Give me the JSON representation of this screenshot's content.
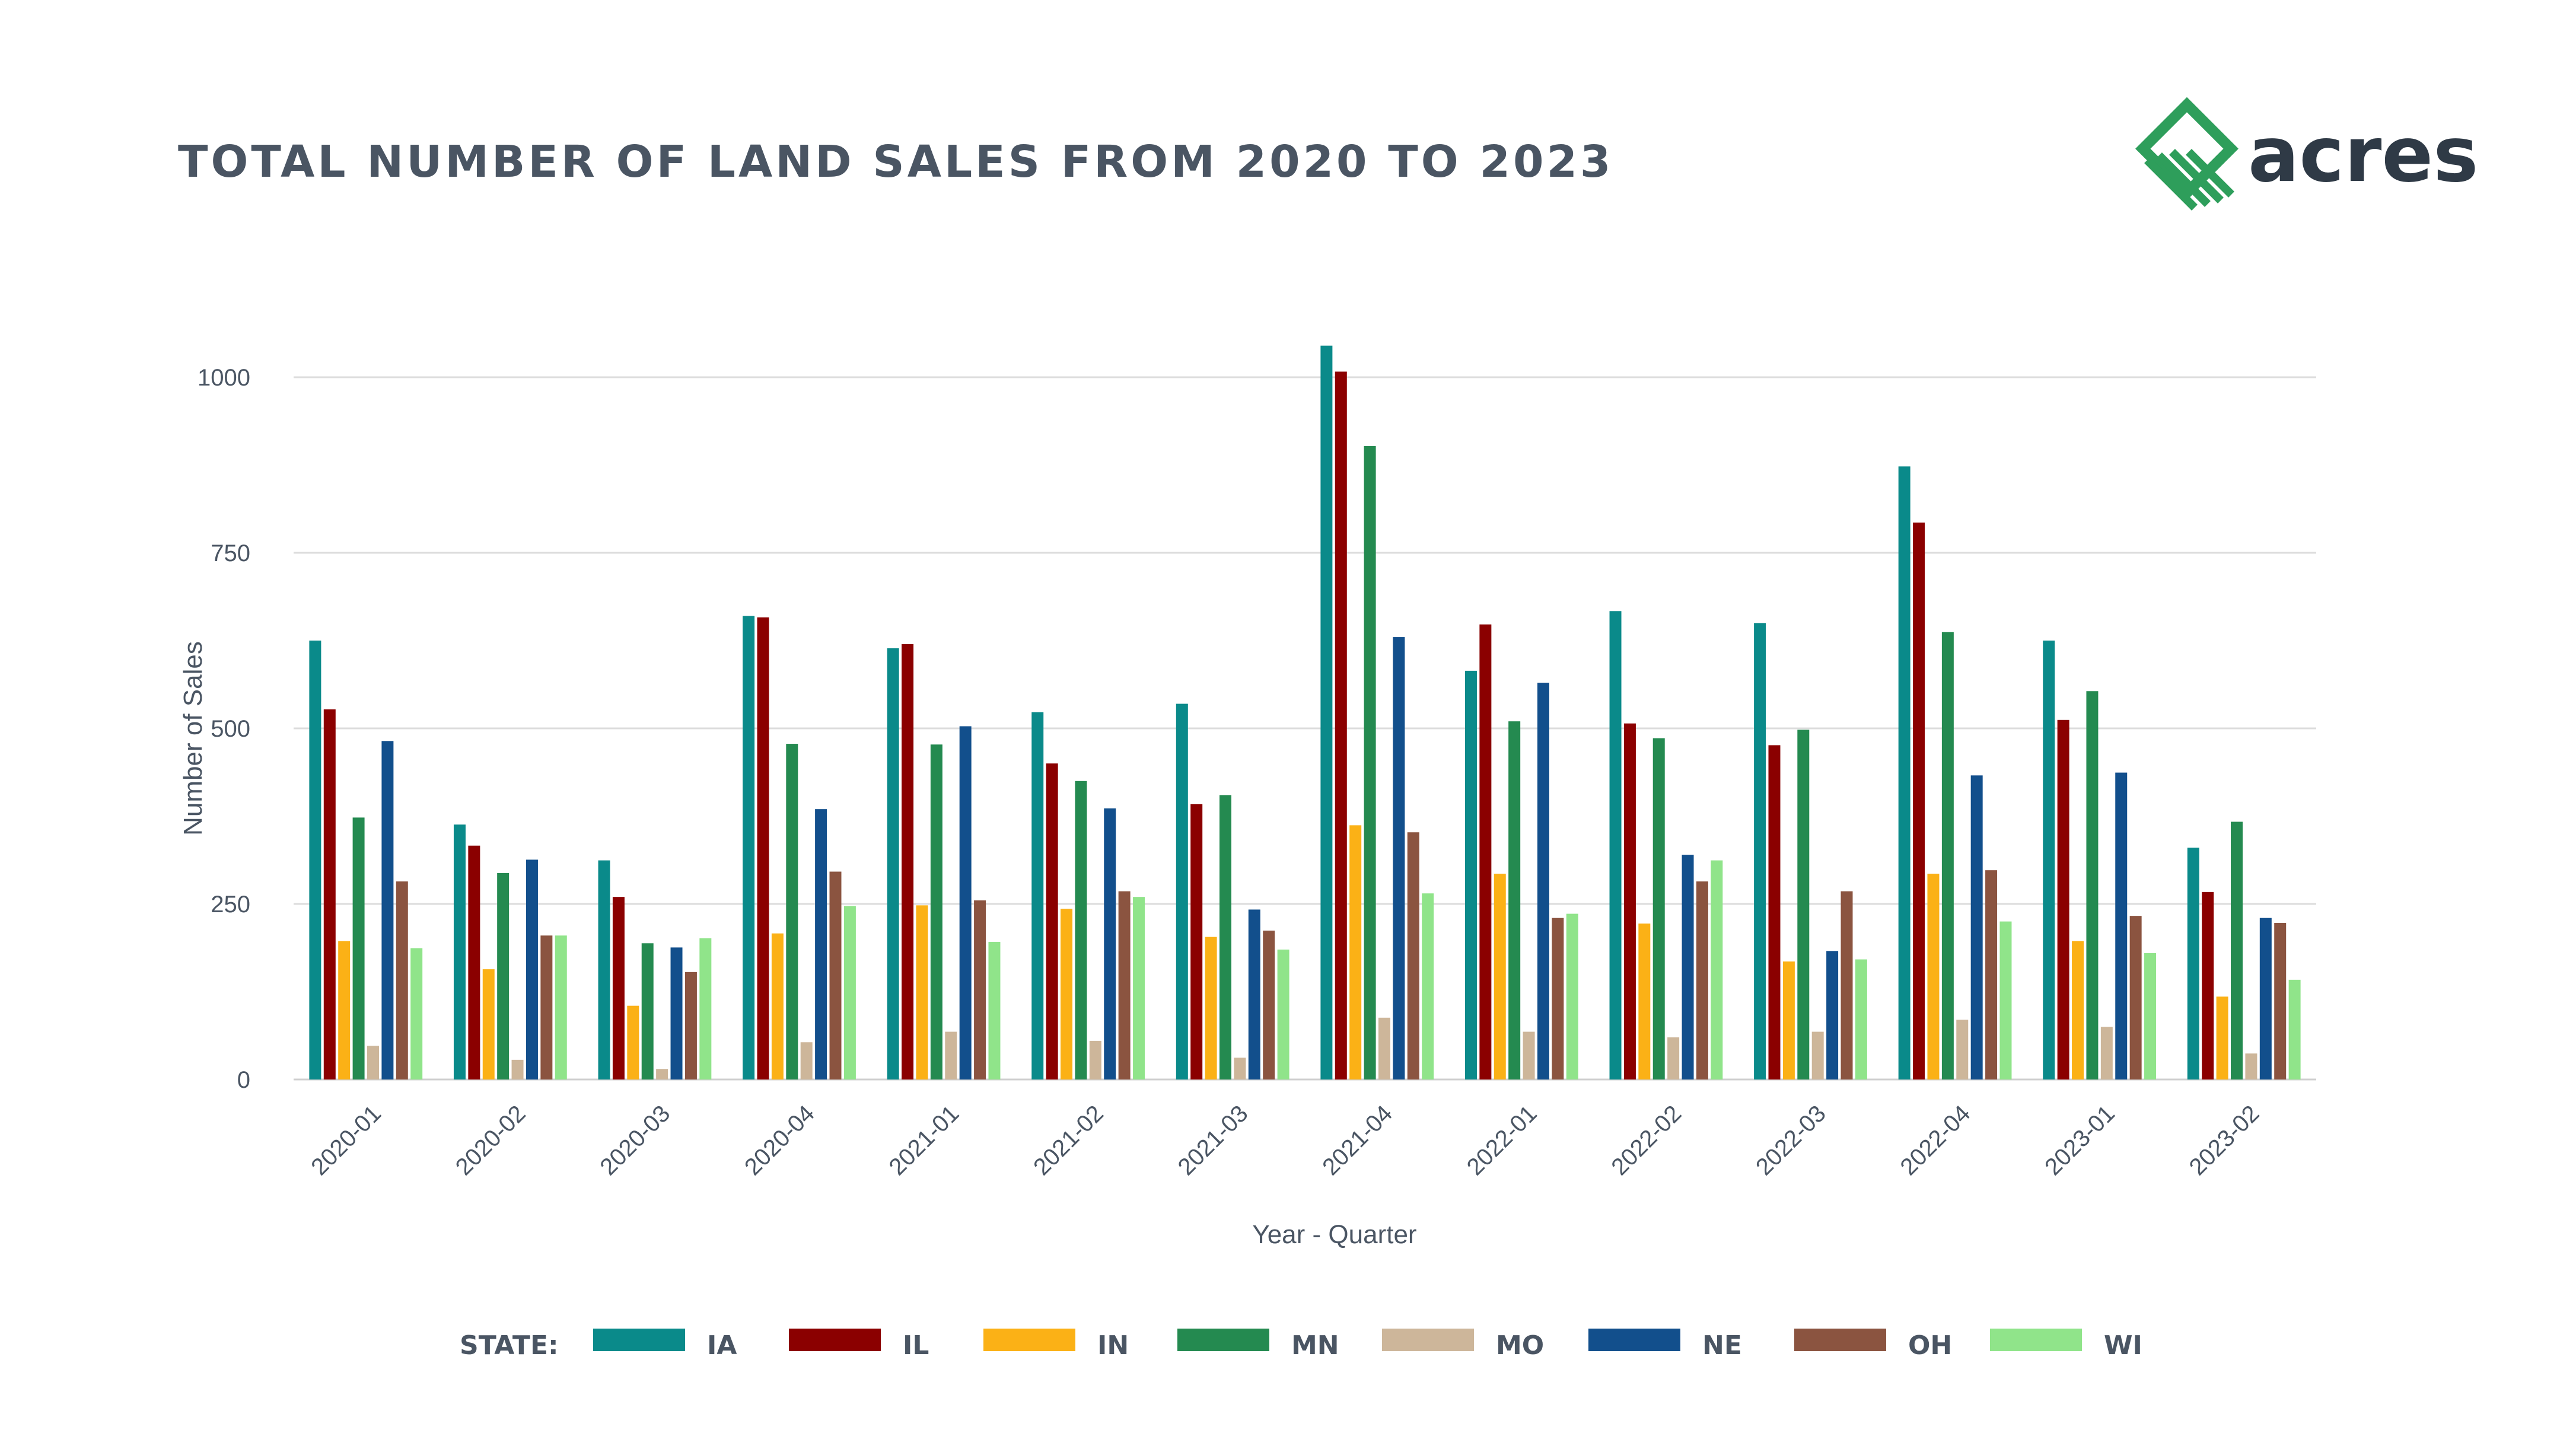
{
  "header": {
    "title": "TOTAL NUMBER OF LAND SALES FROM 2020 TO 2023"
  },
  "logo": {
    "text": "acres",
    "color": "#2e9e5b"
  },
  "chart_data": {
    "type": "bar",
    "title": "TOTAL NUMBER OF LAND SALES FROM 2020 TO 2023",
    "xlabel": "Year - Quarter",
    "ylabel": "Number of Sales",
    "ylim": [
      0,
      1050
    ],
    "yticks": [
      0,
      250,
      500,
      750,
      1000
    ],
    "grid": true,
    "legend_title": "STATE:",
    "legend_position": "bottom",
    "categories": [
      "2020-01",
      "2020-02",
      "2020-03",
      "2020-04",
      "2021-01",
      "2021-02",
      "2021-03",
      "2021-04",
      "2022-01",
      "2022-02",
      "2022-03",
      "2022-04",
      "2023-01",
      "2023-02"
    ],
    "series": [
      {
        "name": "IA",
        "color": "#0a8a8a",
        "values": [
          625,
          363,
          312,
          660,
          614,
          523,
          535,
          1045,
          582,
          667,
          650,
          873,
          625,
          330
        ]
      },
      {
        "name": "IL",
        "color": "#8b0000",
        "values": [
          527,
          333,
          260,
          658,
          620,
          450,
          392,
          1008,
          648,
          507,
          476,
          793,
          512,
          267
        ]
      },
      {
        "name": "IN",
        "color": "#fbb116",
        "values": [
          197,
          157,
          105,
          208,
          248,
          243,
          203,
          362,
          293,
          222,
          168,
          293,
          197,
          118
        ]
      },
      {
        "name": "MN",
        "color": "#248a50",
        "values": [
          373,
          294,
          194,
          478,
          477,
          425,
          405,
          902,
          510,
          486,
          498,
          637,
          553,
          367
        ]
      },
      {
        "name": "MO",
        "color": "#cdb69a",
        "values": [
          48,
          28,
          15,
          53,
          68,
          55,
          31,
          88,
          68,
          60,
          68,
          85,
          75,
          37
        ]
      },
      {
        "name": "NE",
        "color": "#124f8c",
        "values": [
          482,
          313,
          188,
          385,
          503,
          386,
          242,
          630,
          565,
          320,
          183,
          433,
          437,
          230
        ]
      },
      {
        "name": "OH",
        "color": "#8b5440",
        "values": [
          282,
          205,
          153,
          296,
          255,
          268,
          212,
          352,
          230,
          282,
          268,
          298,
          233,
          223
        ]
      },
      {
        "name": "WI",
        "color": "#90e48a",
        "values": [
          187,
          205,
          201,
          247,
          196,
          260,
          185,
          265,
          236,
          312,
          171,
          225,
          180,
          142
        ]
      }
    ]
  }
}
